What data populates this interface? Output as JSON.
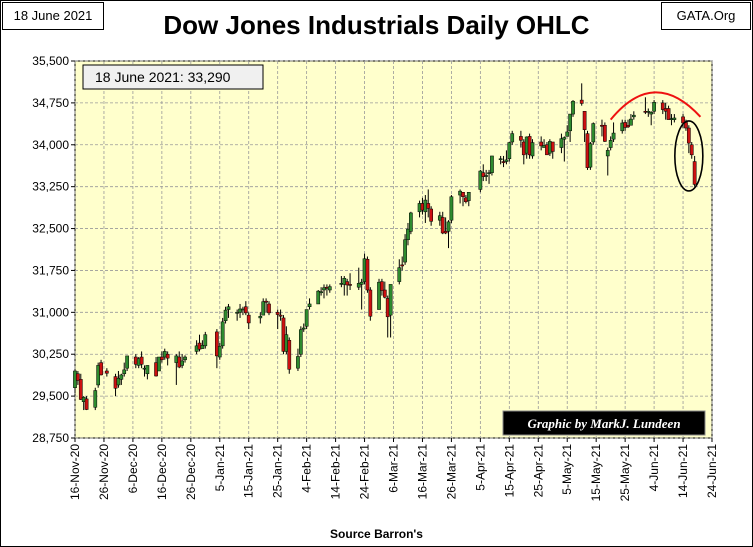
{
  "header": {
    "date_label": "18 June 2021",
    "site_label": "GATA.Org",
    "title": "Dow Jones Industrials Daily OHLC"
  },
  "annotations": {
    "value_box": "18 June 2021:  33,290",
    "credit": "Graphic by MarkJ. Lundeen"
  },
  "footer": {
    "source": "Source Barron's"
  },
  "colors": {
    "plot_bg": "#ffffcc",
    "up": "#2e8b2e",
    "down": "#cc1111",
    "arc": "#ee1111"
  },
  "chart_data": {
    "type": "ohlc-candlestick",
    "title": "Dow Jones Industrials Daily OHLC",
    "xlabel": "Source Barron's",
    "ylabel": "",
    "ylim": [
      28750,
      35500
    ],
    "yticks": [
      28750,
      29500,
      30250,
      31000,
      31750,
      32500,
      33250,
      34000,
      34750,
      35500
    ],
    "ytick_labels": [
      "28,750",
      "29,500",
      "30,250",
      "31,000",
      "31,750",
      "32,500",
      "33,250",
      "34,000",
      "34,750",
      "35,500"
    ],
    "xlim": [
      "2020-11-16",
      "2021-06-24"
    ],
    "xticks": [
      "2020-11-16",
      "2020-11-26",
      "2020-12-06",
      "2020-12-16",
      "2020-12-26",
      "2021-01-05",
      "2021-01-15",
      "2021-01-25",
      "2021-02-04",
      "2021-02-14",
      "2021-02-24",
      "2021-03-06",
      "2021-03-16",
      "2021-03-26",
      "2021-04-05",
      "2021-04-15",
      "2021-04-25",
      "2021-05-05",
      "2021-05-15",
      "2021-05-25",
      "2021-06-04",
      "2021-06-14",
      "2021-06-24"
    ],
    "xtick_labels": [
      "16-Nov-20",
      "26-Nov-20",
      "6-Dec-20",
      "16-Dec-20",
      "26-Dec-20",
      "5-Jan-21",
      "15-Jan-21",
      "25-Jan-21",
      "4-Feb-21",
      "14-Feb-21",
      "24-Feb-21",
      "6-Mar-21",
      "16-Mar-21",
      "26-Mar-21",
      "5-Apr-21",
      "15-Apr-21",
      "25-Apr-21",
      "5-May-21",
      "15-May-21",
      "25-May-21",
      "4-Jun-21",
      "14-Jun-21",
      "24-Jun-21"
    ],
    "grid": true,
    "last_close": {
      "date": "2021-06-18",
      "value": 33290
    },
    "points": [
      [
        "2020-11-16",
        29650,
        29950,
        29550,
        29950
      ],
      [
        "2020-11-17",
        29900,
        29950,
        29700,
        29780
      ],
      [
        "2020-11-18",
        29800,
        29900,
        29430,
        29440
      ],
      [
        "2020-11-19",
        29400,
        29500,
        29250,
        29480
      ],
      [
        "2020-11-20",
        29450,
        29500,
        29250,
        29260
      ],
      [
        "2020-11-23",
        29300,
        29650,
        29250,
        29600
      ],
      [
        "2020-11-24",
        29700,
        30100,
        29650,
        30050
      ],
      [
        "2020-11-25",
        30100,
        30150,
        29870,
        29880
      ],
      [
        "2020-11-27",
        29950,
        30000,
        29850,
        29910
      ],
      [
        "2020-11-30",
        29850,
        29900,
        29500,
        29640
      ],
      [
        "2020-12-01",
        29700,
        29950,
        29650,
        29820
      ],
      [
        "2020-12-02",
        29800,
        29900,
        29700,
        29880
      ],
      [
        "2020-12-03",
        29900,
        30100,
        29850,
        29970
      ],
      [
        "2020-12-04",
        30000,
        30220,
        29950,
        30220
      ],
      [
        "2020-12-07",
        30200,
        30250,
        30000,
        30070
      ],
      [
        "2020-12-08",
        30050,
        30200,
        30000,
        30170
      ],
      [
        "2020-12-09",
        30200,
        30300,
        30000,
        30070
      ],
      [
        "2020-12-10",
        30000,
        30050,
        29850,
        30000
      ],
      [
        "2020-12-11",
        29900,
        30050,
        29800,
        30050
      ],
      [
        "2020-12-14",
        30100,
        30200,
        29850,
        29860
      ],
      [
        "2020-12-15",
        29950,
        30200,
        29950,
        30200
      ],
      [
        "2020-12-16",
        30200,
        30300,
        30100,
        30150
      ],
      [
        "2020-12-17",
        30200,
        30350,
        30150,
        30300
      ],
      [
        "2020-12-18",
        30250,
        30300,
        30050,
        30180
      ],
      [
        "2020-12-21",
        30100,
        30250,
        29700,
        30220
      ],
      [
        "2020-12-22",
        30200,
        30300,
        30000,
        30020
      ],
      [
        "2020-12-23",
        30050,
        30250,
        30000,
        30130
      ],
      [
        "2020-12-24",
        30150,
        30230,
        30100,
        30200
      ],
      [
        "2020-12-28",
        30300,
        30500,
        30250,
        30400
      ],
      [
        "2020-12-29",
        30450,
        30600,
        30300,
        30340
      ],
      [
        "2020-12-30",
        30350,
        30500,
        30350,
        30410
      ],
      [
        "2020-12-31",
        30400,
        30650,
        30350,
        30600
      ],
      [
        "2021-01-04",
        30650,
        30700,
        30000,
        30220
      ],
      [
        "2021-01-05",
        30200,
        30450,
        30150,
        30390
      ],
      [
        "2021-01-06",
        30400,
        30900,
        30350,
        30830
      ],
      [
        "2021-01-07",
        30850,
        31100,
        30800,
        31040
      ],
      [
        "2021-01-08",
        31050,
        31150,
        30900,
        31100
      ],
      [
        "2021-01-11",
        31000,
        31050,
        30850,
        31000
      ],
      [
        "2021-01-12",
        31000,
        31150,
        30900,
        31060
      ],
      [
        "2021-01-13",
        31050,
        31100,
        30950,
        31060
      ],
      [
        "2021-01-14",
        31100,
        31200,
        30950,
        30990
      ],
      [
        "2021-01-15",
        30950,
        31000,
        30700,
        30810
      ],
      [
        "2021-01-19",
        30900,
        31000,
        30800,
        30930
      ],
      [
        "2021-01-20",
        30950,
        31250,
        30950,
        31190
      ],
      [
        "2021-01-21",
        31200,
        31250,
        31000,
        31180
      ],
      [
        "2021-01-22",
        31150,
        31200,
        30950,
        30990
      ],
      [
        "2021-01-25",
        31000,
        31050,
        30700,
        30960
      ],
      [
        "2021-01-26",
        30950,
        31050,
        30850,
        30930
      ],
      [
        "2021-01-27",
        30900,
        30950,
        30250,
        30300
      ],
      [
        "2021-01-28",
        30300,
        30750,
        30250,
        30600
      ],
      [
        "2021-01-29",
        30500,
        30550,
        29900,
        29980
      ],
      [
        "2021-02-01",
        30000,
        30350,
        29950,
        30210
      ],
      [
        "2021-02-02",
        30250,
        30750,
        30200,
        30690
      ],
      [
        "2021-02-03",
        30700,
        30800,
        30650,
        30720
      ],
      [
        "2021-02-04",
        30750,
        31050,
        30700,
        31050
      ],
      [
        "2021-02-05",
        31100,
        31250,
        31050,
        31150
      ],
      [
        "2021-02-08",
        31150,
        31400,
        31150,
        31380
      ],
      [
        "2021-02-09",
        31350,
        31450,
        31300,
        31370
      ],
      [
        "2021-02-10",
        31400,
        31500,
        31250,
        31440
      ],
      [
        "2021-02-11",
        31450,
        31500,
        31300,
        31430
      ],
      [
        "2021-02-12",
        31400,
        31500,
        31350,
        31460
      ],
      [
        "2021-02-16",
        31500,
        31650,
        31450,
        31520
      ],
      [
        "2021-02-17",
        31500,
        31650,
        31300,
        31610
      ],
      [
        "2021-02-18",
        31550,
        31600,
        31300,
        31490
      ],
      [
        "2021-02-19",
        31500,
        31700,
        31400,
        31490
      ],
      [
        "2021-02-22",
        31450,
        31800,
        31400,
        31520
      ],
      [
        "2021-02-23",
        31500,
        31600,
        31050,
        31540
      ],
      [
        "2021-02-24",
        31550,
        32050,
        31500,
        31960
      ],
      [
        "2021-02-25",
        31950,
        32000,
        31350,
        31400
      ],
      [
        "2021-02-26",
        31400,
        31450,
        30850,
        30930
      ],
      [
        "2021-03-01",
        31050,
        31600,
        31050,
        31540
      ],
      [
        "2021-03-02",
        31550,
        31600,
        31300,
        31390
      ],
      [
        "2021-03-03",
        31400,
        31550,
        31250,
        31270
      ],
      [
        "2021-03-04",
        31250,
        31300,
        30550,
        30920
      ],
      [
        "2021-03-05",
        30950,
        31500,
        30550,
        31500
      ],
      [
        "2021-03-08",
        31550,
        31950,
        31500,
        31800
      ],
      [
        "2021-03-09",
        31850,
        32000,
        31750,
        31830
      ],
      [
        "2021-03-10",
        31900,
        32400,
        31850,
        32300
      ],
      [
        "2021-03-11",
        32300,
        32600,
        32200,
        32490
      ],
      [
        "2021-03-12",
        32450,
        32800,
        32400,
        32780
      ],
      [
        "2021-03-15",
        32800,
        33000,
        32700,
        32950
      ],
      [
        "2021-03-16",
        32950,
        33050,
        32750,
        32830
      ],
      [
        "2021-03-17",
        32800,
        33100,
        32600,
        33010
      ],
      [
        "2021-03-18",
        32950,
        33200,
        32700,
        32860
      ],
      [
        "2021-03-19",
        32850,
        32900,
        32550,
        32630
      ],
      [
        "2021-03-22",
        32650,
        32800,
        32550,
        32730
      ],
      [
        "2021-03-23",
        32700,
        32800,
        32400,
        32420
      ],
      [
        "2021-03-24",
        32450,
        32700,
        32400,
        32420
      ],
      [
        "2021-03-25",
        32450,
        32650,
        32150,
        32620
      ],
      [
        "2021-03-26",
        32650,
        33100,
        32600,
        33070
      ],
      [
        "2021-03-29",
        33100,
        33200,
        32950,
        33170
      ],
      [
        "2021-03-30",
        33150,
        33150,
        32900,
        33070
      ],
      [
        "2021-03-31",
        33050,
        33100,
        32950,
        32980
      ],
      [
        "2021-04-01",
        33000,
        33100,
        32900,
        33150
      ],
      [
        "2021-04-05",
        33200,
        33550,
        33150,
        33530
      ],
      [
        "2021-04-06",
        33500,
        33650,
        33350,
        33430
      ],
      [
        "2021-04-07",
        33450,
        33550,
        33350,
        33450
      ],
      [
        "2021-04-08",
        33500,
        33550,
        33300,
        33500
      ],
      [
        "2021-04-09",
        33500,
        33800,
        33450,
        33800
      ],
      [
        "2021-04-12",
        33750,
        33800,
        33650,
        33750
      ],
      [
        "2021-04-13",
        33700,
        33800,
        33600,
        33680
      ],
      [
        "2021-04-14",
        33700,
        33900,
        33650,
        33730
      ],
      [
        "2021-04-15",
        33750,
        34050,
        33700,
        34040
      ],
      [
        "2021-04-16",
        34050,
        34250,
        34000,
        34200
      ],
      [
        "2021-04-19",
        34150,
        34250,
        33950,
        34080
      ],
      [
        "2021-04-20",
        34050,
        34100,
        33650,
        33820
      ],
      [
        "2021-04-21",
        33850,
        34150,
        33750,
        34140
      ],
      [
        "2021-04-22",
        34150,
        34200,
        33750,
        33820
      ],
      [
        "2021-04-23",
        33800,
        34100,
        33750,
        34040
      ],
      [
        "2021-04-26",
        34050,
        34150,
        33900,
        33980
      ],
      [
        "2021-04-27",
        33950,
        34100,
        33950,
        33990
      ],
      [
        "2021-04-28",
        34000,
        34050,
        33900,
        33820
      ],
      [
        "2021-04-29",
        33850,
        34100,
        33800,
        34060
      ],
      [
        "2021-04-30",
        34050,
        34050,
        33750,
        33880
      ],
      [
        "2021-05-03",
        33950,
        34200,
        33850,
        34110
      ],
      [
        "2021-05-04",
        34100,
        34150,
        33700,
        34130
      ],
      [
        "2021-05-05",
        34150,
        34350,
        34150,
        34230
      ],
      [
        "2021-05-06",
        34250,
        34550,
        34050,
        34550
      ],
      [
        "2021-05-07",
        34550,
        34800,
        34500,
        34780
      ],
      [
        "2021-05-10",
        34800,
        35100,
        34700,
        34740
      ],
      [
        "2021-05-11",
        34600,
        34600,
        34050,
        34270
      ],
      [
        "2021-05-12",
        34200,
        34250,
        33550,
        33590
      ],
      [
        "2021-05-13",
        33600,
        34050,
        33550,
        34020
      ],
      [
        "2021-05-14",
        34050,
        34400,
        34000,
        34380
      ],
      [
        "2021-05-17",
        34350,
        34450,
        34150,
        34330
      ],
      [
        "2021-05-18",
        34350,
        34400,
        34050,
        34060
      ],
      [
        "2021-05-19",
        33800,
        33950,
        33450,
        33900
      ],
      [
        "2021-05-20",
        33950,
        34150,
        33900,
        34080
      ],
      [
        "2021-05-21",
        34100,
        34400,
        34050,
        34210
      ],
      [
        "2021-05-24",
        34250,
        34450,
        34200,
        34390
      ],
      [
        "2021-05-25",
        34400,
        34450,
        34250,
        34310
      ],
      [
        "2021-05-26",
        34350,
        34450,
        34300,
        34320
      ],
      [
        "2021-05-27",
        34350,
        34550,
        34350,
        34460
      ],
      [
        "2021-05-28",
        34500,
        34600,
        34450,
        34530
      ],
      [
        "2021-06-01",
        34600,
        34850,
        34550,
        34580
      ],
      [
        "2021-06-02",
        34600,
        34650,
        34500,
        34600
      ],
      [
        "2021-06-03",
        34550,
        34600,
        34350,
        34580
      ],
      [
        "2021-06-04",
        34600,
        34800,
        34550,
        34760
      ],
      [
        "2021-06-07",
        34750,
        34800,
        34550,
        34630
      ],
      [
        "2021-06-08",
        34650,
        34750,
        34450,
        34600
      ],
      [
        "2021-06-09",
        34650,
        34700,
        34450,
        34450
      ],
      [
        "2021-06-10",
        34450,
        34550,
        34350,
        34470
      ],
      [
        "2021-06-11",
        34450,
        34550,
        34400,
        34480
      ],
      [
        "2021-06-14",
        34500,
        34550,
        34300,
        34390
      ],
      [
        "2021-06-15",
        34400,
        34450,
        34250,
        34300
      ],
      [
        "2021-06-16",
        34300,
        34350,
        33850,
        34030
      ],
      [
        "2021-06-17",
        34000,
        34050,
        33750,
        33820
      ],
      [
        "2021-06-18",
        33700,
        33800,
        33250,
        33290
      ]
    ]
  }
}
